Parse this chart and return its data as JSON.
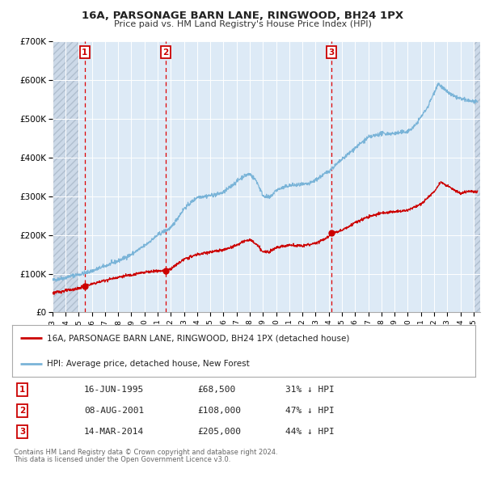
{
  "title": "16A, PARSONAGE BARN LANE, RINGWOOD, BH24 1PX",
  "subtitle": "Price paid vs. HM Land Registry's House Price Index (HPI)",
  "legend_line1": "16A, PARSONAGE BARN LANE, RINGWOOD, BH24 1PX (detached house)",
  "legend_line2": "HPI: Average price, detached house, New Forest",
  "footer1": "Contains HM Land Registry data © Crown copyright and database right 2024.",
  "footer2": "This data is licensed under the Open Government Licence v3.0.",
  "transactions": [
    {
      "num": 1,
      "date": "16-JUN-1995",
      "price": 68500,
      "pct": "31% ↓ HPI",
      "year_x": 1995.46
    },
    {
      "num": 2,
      "date": "08-AUG-2001",
      "price": 108000,
      "pct": "47% ↓ HPI",
      "year_x": 2001.6
    },
    {
      "num": 3,
      "date": "14-MAR-2014",
      "price": 205000,
      "pct": "44% ↓ HPI",
      "year_x": 2014.2
    }
  ],
  "hpi_color": "#7ab4d8",
  "price_color": "#cc0000",
  "bg_color": "#ddeaf6",
  "hatch_bg_color": "#ccd9e8",
  "grid_color": "#ffffff",
  "dashed_line_color": "#dd0000",
  "ylim": [
    0,
    700000
  ],
  "xlim_start": 1993.0,
  "xlim_end": 2025.5,
  "hatch_left_end": 1995.0,
  "hatch_right_start": 2025.0
}
